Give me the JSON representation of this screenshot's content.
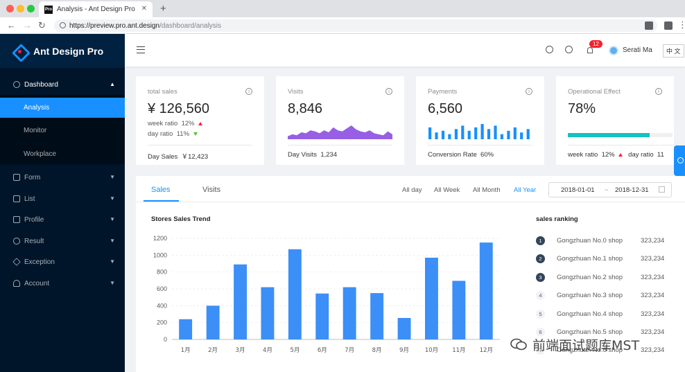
{
  "browser": {
    "tab_title": "Analysis - Ant Design Pro",
    "favicon_text": "Pro",
    "url_host": "https://preview.pro.ant.design",
    "url_path": "/dashboard/analysis"
  },
  "sidebar": {
    "logo": "Ant Design Pro",
    "items": [
      {
        "label": "Dashboard",
        "icon": "dashboard-icon"
      },
      {
        "label": "Form",
        "icon": "form-icon"
      },
      {
        "label": "List",
        "icon": "list-icon"
      },
      {
        "label": "Profile",
        "icon": "profile-icon"
      },
      {
        "label": "Result",
        "icon": "check-circle-icon"
      },
      {
        "label": "Exception",
        "icon": "warning-icon"
      },
      {
        "label": "Account",
        "icon": "user-icon"
      }
    ],
    "subitems": [
      "Analysis",
      "Monitor",
      "Workplace"
    ]
  },
  "header": {
    "notification_count": "12",
    "username": "Serati Ma",
    "language": "中 文"
  },
  "cards": {
    "total_sales": {
      "title": "total sales",
      "value": "¥ 126,560",
      "week_label": "week ratio",
      "week_value": "12%",
      "day_label": "day ratio",
      "day_value": "11%",
      "foot_label": "Day Sales",
      "foot_value": "￥12,423"
    },
    "visits": {
      "title": "Visits",
      "value": "8,846",
      "foot_label": "Day Visits",
      "foot_value": "1,234"
    },
    "payments": {
      "title": "Payments",
      "value": "6,560",
      "foot_label": "Conversion Rate",
      "foot_value": "60%"
    },
    "operational": {
      "title": "Operational Effect",
      "value": "78%",
      "progress": 0.78,
      "week_label": "week ratio",
      "week_value": "12%",
      "day_label": "day ratio",
      "day_value": "11"
    }
  },
  "panel": {
    "tabs": [
      "Sales",
      "Visits"
    ],
    "ranges": [
      "All day",
      "All Week",
      "All Month",
      "All Year"
    ],
    "date_start": "2018-01-01",
    "date_sep": "~",
    "date_end": "2018-12-31",
    "chart_title": "Stores Sales Trend",
    "ranking_title": "sales ranking",
    "ranking": [
      {
        "rank": "1",
        "name": "Gongzhuan No.0 shop",
        "value": "323,234"
      },
      {
        "rank": "2",
        "name": "Gongzhuan No.1 shop",
        "value": "323,234"
      },
      {
        "rank": "3",
        "name": "Gongzhuan No.2 shop",
        "value": "323,234"
      },
      {
        "rank": "4",
        "name": "Gongzhuan No.3 shop",
        "value": "323,234"
      },
      {
        "rank": "5",
        "name": "Gongzhuan No.4 shop",
        "value": "323,234"
      },
      {
        "rank": "6",
        "name": "Gongzhuan No.5 shop",
        "value": "323,234"
      },
      {
        "rank": "7",
        "name": "Gongzhuan No.6 shop",
        "value": "323,234"
      }
    ]
  },
  "watermark": "前端面试题库MST",
  "colors": {
    "primary": "#1890ff",
    "sider": "#001529",
    "visits_area": "#975fe4",
    "progress": "#13c2c2"
  },
  "chart_data": {
    "type": "bar",
    "categories": [
      "1月",
      "2月",
      "3月",
      "4月",
      "5月",
      "6月",
      "7月",
      "8月",
      "9月",
      "10月",
      "11月",
      "12月"
    ],
    "values": [
      240,
      400,
      890,
      620,
      1070,
      545,
      620,
      550,
      255,
      970,
      695,
      1150
    ],
    "yticks": [
      0,
      200,
      400,
      600,
      800,
      1000,
      1200
    ],
    "ylim": [
      0,
      1200
    ],
    "color": "#3b8ff7"
  },
  "mini_charts": {
    "visits_area": [
      3,
      5,
      4,
      7,
      6,
      9,
      8,
      6,
      9,
      7,
      12,
      9,
      8,
      11,
      14,
      10,
      8,
      7,
      9,
      6,
      5,
      4,
      8,
      5
    ],
    "payments_bars": [
      7,
      4,
      5,
      3,
      6,
      8,
      5,
      7,
      9,
      6,
      8,
      3,
      5,
      7,
      4,
      6
    ]
  }
}
